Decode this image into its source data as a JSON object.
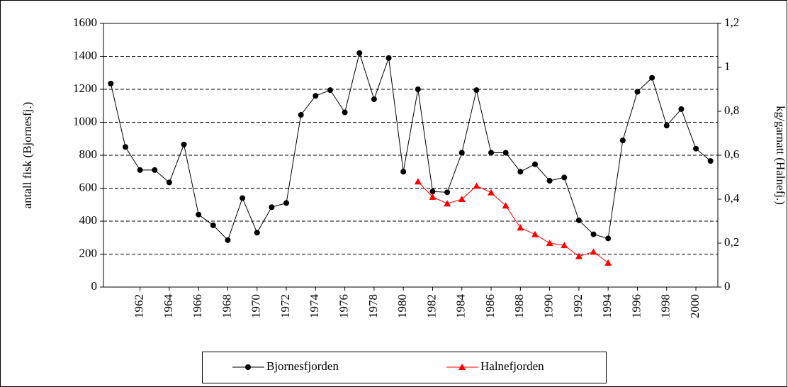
{
  "chart_data": {
    "type": "line",
    "ylabel": "antall fisk (Bjornesfj.)",
    "y2label": "kg/garnatt (Halnefj.)",
    "x": [
      1960,
      1961,
      1962,
      1963,
      1964,
      1965,
      1966,
      1967,
      1968,
      1969,
      1970,
      1971,
      1972,
      1973,
      1974,
      1975,
      1976,
      1977,
      1978,
      1979,
      1980,
      1981,
      1982,
      1983,
      1984,
      1985,
      1986,
      1987,
      1988,
      1989,
      1990,
      1991,
      1992,
      1993,
      1994,
      1995,
      1996,
      1997,
      1998,
      1999,
      2000,
      2001
    ],
    "xlim": [
      1959.5,
      2001.5
    ],
    "xticks": [
      1962,
      1964,
      1966,
      1968,
      1970,
      1972,
      1974,
      1976,
      1978,
      1980,
      1982,
      1984,
      1986,
      1988,
      1990,
      1992,
      1994,
      1996,
      1998,
      2000
    ],
    "ylim": [
      0,
      1600
    ],
    "yticks": [
      0,
      200,
      400,
      600,
      800,
      1000,
      1200,
      1400,
      1600
    ],
    "y2lim": [
      0,
      1.2
    ],
    "y2ticks": [
      0,
      {
        "value": 0.2,
        "label": "0,2"
      },
      {
        "value": 0.4,
        "label": "0,4"
      },
      {
        "value": 0.6,
        "label": "0,6"
      },
      {
        "value": 0.8,
        "label": "0,8"
      },
      1,
      {
        "value": 1.2,
        "label": "1,2"
      }
    ],
    "grid": true,
    "legend": "bottom",
    "series": [
      {
        "name": "Bjornesfjorden",
        "color": "#000000",
        "marker": "circle",
        "values": [
          1235,
          850,
          710,
          710,
          635,
          865,
          440,
          375,
          285,
          540,
          330,
          485,
          510,
          1045,
          1160,
          1195,
          1060,
          1420,
          1140,
          1390,
          700,
          1200,
          580,
          575,
          815,
          1195,
          815,
          815,
          700,
          745,
          645,
          665,
          405,
          320,
          295,
          890,
          1185,
          1270,
          980,
          1080,
          840,
          765
        ]
      },
      {
        "name": "Halnefjorden",
        "color": "#ff0000",
        "marker": "triangle",
        "axis": "y2",
        "values": [
          null,
          null,
          null,
          null,
          null,
          null,
          null,
          null,
          null,
          null,
          null,
          null,
          null,
          null,
          null,
          null,
          null,
          null,
          null,
          null,
          null,
          0.48,
          0.41,
          0.38,
          0.4,
          0.46,
          0.43,
          0.37,
          0.27,
          0.24,
          0.2,
          0.19,
          0.14,
          0.16,
          0.11,
          null,
          null,
          null,
          null,
          null,
          null,
          null
        ]
      }
    ]
  }
}
